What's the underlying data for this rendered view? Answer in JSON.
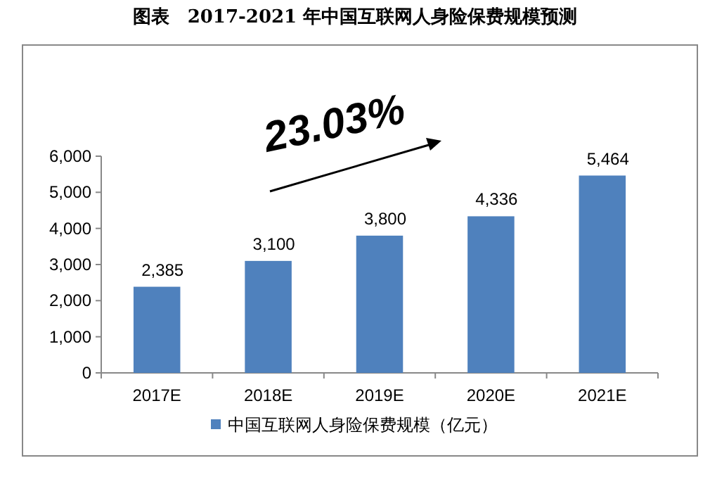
{
  "chart_data": {
    "type": "bar",
    "title": "图表　2017-2021 年中国互联网人身险保费规模预测",
    "categories": [
      "2017E",
      "2018E",
      "2019E",
      "2020E",
      "2021E"
    ],
    "series": [
      {
        "name": "中国互联网人身险保费规模（亿元）",
        "color": "#4f81bd",
        "values": [
          2385,
          3100,
          3800,
          4336,
          5464
        ]
      }
    ],
    "ylim": [
      0,
      6000
    ],
    "yticks": [
      {
        "value": 0,
        "label": "0"
      },
      {
        "value": 1000,
        "label": "1,000"
      },
      {
        "value": 2000,
        "label": "2,000"
      },
      {
        "value": 3000,
        "label": "3,000"
      },
      {
        "value": 4000,
        "label": "4,000"
      },
      {
        "value": 5000,
        "label": "5,000"
      },
      {
        "value": 6000,
        "label": "6,000"
      }
    ],
    "value_labels": [
      "2,385",
      "3,100",
      "3,800",
      "4,336",
      "5,464"
    ],
    "annotations": [
      "23.03%"
    ],
    "grid": false,
    "legend": "bottom"
  }
}
